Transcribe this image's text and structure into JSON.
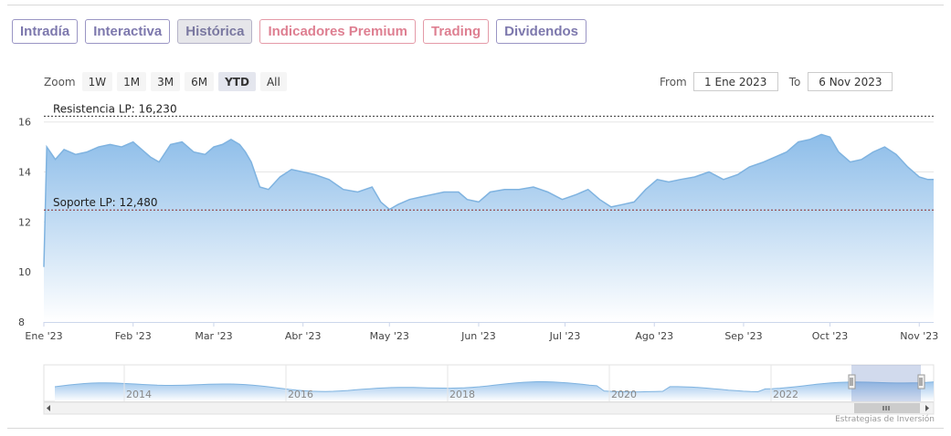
{
  "tabs": [
    {
      "label": "Intradía",
      "style": "normal"
    },
    {
      "label": "Interactiva",
      "style": "normal"
    },
    {
      "label": "Histórica",
      "style": "active"
    },
    {
      "label": "Indicadores Premium",
      "style": "red"
    },
    {
      "label": "Trading",
      "style": "red"
    },
    {
      "label": "Dividendos",
      "style": "normal"
    }
  ],
  "zoom": {
    "label": "Zoom",
    "buttons": [
      "1W",
      "1M",
      "3M",
      "6M",
      "YTD",
      "All"
    ],
    "selected": "YTD"
  },
  "range": {
    "from_label": "From",
    "from_value": "1 Ene 2023",
    "to_label": "To",
    "to_value": "6 Nov 2023"
  },
  "credit": "Estrategias de Inversión",
  "colors": {
    "line": "#7fb3e0",
    "fill_top": "#8dbde9",
    "fill_bottom": "#ffffff",
    "resistance": "#333333",
    "support": "#8b2a2a",
    "tab_purple": "#7d78ad",
    "tab_red": "#de7f91"
  },
  "chart_data": {
    "type": "area",
    "title": "",
    "xlabel": "",
    "ylabel": "",
    "ylim": [
      8,
      16.5
    ],
    "y_ticks": [
      8,
      10,
      12,
      14,
      16
    ],
    "xlim": [
      "2023-01-01",
      "2023-11-06"
    ],
    "x_ticks": [
      {
        "date": "2023-01-01",
        "label": "Ene '23"
      },
      {
        "date": "2023-02-01",
        "label": "Feb '23"
      },
      {
        "date": "2023-03-01",
        "label": "Mar '23"
      },
      {
        "date": "2023-04-01",
        "label": "Abr '23"
      },
      {
        "date": "2023-05-01",
        "label": "May '23"
      },
      {
        "date": "2023-06-01",
        "label": "Jun '23"
      },
      {
        "date": "2023-07-01",
        "label": "Jul '23"
      },
      {
        "date": "2023-08-01",
        "label": "Ago '23"
      },
      {
        "date": "2023-09-01",
        "label": "Sep '23"
      },
      {
        "date": "2023-10-01",
        "label": "Oct '23"
      },
      {
        "date": "2023-11-01",
        "label": "Nov '23"
      }
    ],
    "series": [
      {
        "x": [
          "2023-01-01",
          "2023-01-02",
          "2023-01-05",
          "2023-01-08",
          "2023-01-12",
          "2023-01-16",
          "2023-01-20",
          "2023-01-24",
          "2023-01-28",
          "2023-02-01",
          "2023-02-04",
          "2023-02-07",
          "2023-02-10",
          "2023-02-14",
          "2023-02-18",
          "2023-02-22",
          "2023-02-26",
          "2023-03-01",
          "2023-03-04",
          "2023-03-07",
          "2023-03-10",
          "2023-03-12",
          "2023-03-14",
          "2023-03-17",
          "2023-03-20",
          "2023-03-24",
          "2023-03-28",
          "2023-04-01",
          "2023-04-05",
          "2023-04-10",
          "2023-04-15",
          "2023-04-20",
          "2023-04-25",
          "2023-04-28",
          "2023-05-01",
          "2023-05-04",
          "2023-05-08",
          "2023-05-12",
          "2023-05-16",
          "2023-05-20",
          "2023-05-25",
          "2023-05-28",
          "2023-06-01",
          "2023-06-05",
          "2023-06-10",
          "2023-06-15",
          "2023-06-20",
          "2023-06-25",
          "2023-06-30",
          "2023-07-05",
          "2023-07-09",
          "2023-07-13",
          "2023-07-17",
          "2023-07-21",
          "2023-07-25",
          "2023-07-29",
          "2023-08-02",
          "2023-08-06",
          "2023-08-10",
          "2023-08-15",
          "2023-08-20",
          "2023-08-25",
          "2023-08-30",
          "2023-09-03",
          "2023-09-08",
          "2023-09-12",
          "2023-09-16",
          "2023-09-20",
          "2023-09-24",
          "2023-09-28",
          "2023-10-01",
          "2023-10-04",
          "2023-10-08",
          "2023-10-12",
          "2023-10-16",
          "2023-10-20",
          "2023-10-24",
          "2023-10-28",
          "2023-11-01",
          "2023-11-04",
          "2023-11-06"
        ],
        "values": [
          10.2,
          15.0,
          14.5,
          14.9,
          14.7,
          14.8,
          15.0,
          15.1,
          15.0,
          15.2,
          14.9,
          14.6,
          14.4,
          15.1,
          15.2,
          14.8,
          14.7,
          15.0,
          15.1,
          15.3,
          15.1,
          14.8,
          14.4,
          13.4,
          13.3,
          13.8,
          14.1,
          14.0,
          13.9,
          13.7,
          13.3,
          13.2,
          13.4,
          12.8,
          12.5,
          12.7,
          12.9,
          13.0,
          13.1,
          13.2,
          13.2,
          12.9,
          12.8,
          13.2,
          13.3,
          13.3,
          13.4,
          13.2,
          12.9,
          13.1,
          13.3,
          12.9,
          12.6,
          12.7,
          12.8,
          13.3,
          13.7,
          13.6,
          13.7,
          13.8,
          14.0,
          13.7,
          13.9,
          14.2,
          14.4,
          14.6,
          14.8,
          15.2,
          15.3,
          15.5,
          15.4,
          14.8,
          14.4,
          14.5,
          14.8,
          15.0,
          14.7,
          14.2,
          13.8,
          13.7,
          13.7
        ]
      }
    ],
    "annotations": [
      {
        "label": "Resistencia LP: 16,230",
        "y": 16.23,
        "style": "dashed"
      },
      {
        "label": "Soporte LP: 12,480",
        "y": 12.48,
        "style": "dashed"
      }
    ],
    "navigator": {
      "year_labels": [
        "2014",
        "2016",
        "2018",
        "2020",
        "2022"
      ],
      "selected_range": "YTD"
    },
    "grid": true,
    "legend": "none"
  }
}
